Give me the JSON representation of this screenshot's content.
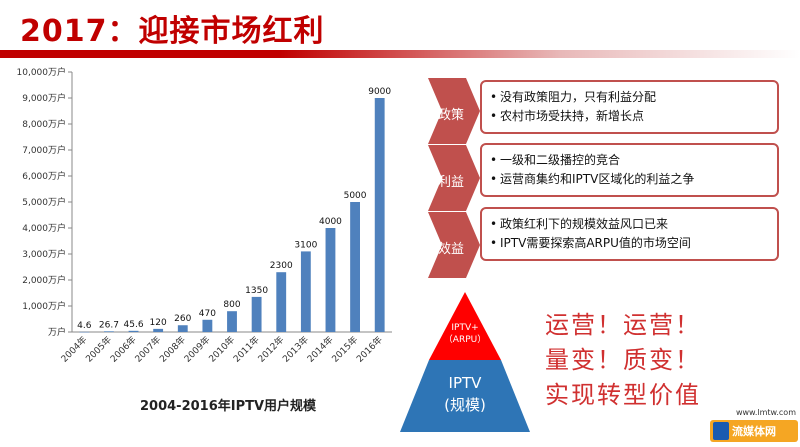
{
  "title": "2017：迎接市场红利",
  "chart_data": {
    "type": "bar",
    "title": "2004-2016年IPTV用户规模",
    "categories": [
      "2004年",
      "2005年",
      "2006年",
      "2007年",
      "2008年",
      "2009年",
      "2010年",
      "2011年",
      "2012年",
      "2013年",
      "2014年",
      "2015年",
      "2016年"
    ],
    "values": [
      4.6,
      26.7,
      45.6,
      120,
      260,
      470,
      800,
      1350,
      2300,
      3100,
      4000,
      5000,
      9000
    ],
    "data_labels": [
      "4.6",
      "26.7",
      "45.6",
      "120",
      "260",
      "470",
      "800",
      "1350",
      "2300",
      "3100",
      "4000",
      "5000",
      "9000"
    ],
    "ylim": [
      0,
      10000
    ],
    "y_ticks": [
      0,
      1000,
      2000,
      3000,
      4000,
      5000,
      6000,
      7000,
      8000,
      9000,
      10000
    ],
    "y_tick_labels": [
      "万户",
      "1,000万户",
      "2,000万户",
      "3,000万户",
      "4,000万户",
      "5,000万户",
      "6,000万户",
      "7,000万户",
      "8,000万户",
      "9,000万户",
      "10,000万户"
    ],
    "grid": false,
    "bar_color": "#4f81bd"
  },
  "factors": [
    {
      "label": "政策",
      "bullets": [
        "没有政策阻力，只有利益分配",
        "农村市场受扶持，新增长点"
      ]
    },
    {
      "label": "利益",
      "bullets": [
        "一级和二级播控的竞合",
        "运营商集约和IPTV区域化的利益之争"
      ]
    },
    {
      "label": "效益",
      "bullets": [
        "政策红利下的规模效益风口已来",
        "IPTV需要探索高ARPU值的市场空间"
      ]
    }
  ],
  "pyramid": {
    "top_line1": "IPTV+",
    "top_line2": "（ARPU）",
    "bottom_line1": "IPTV",
    "bottom_line2": "(规模)"
  },
  "slogan": [
    "运营！运营！",
    "量变！质变！",
    "实现转型价值"
  ],
  "logo": {
    "url": "www.lmtw.com",
    "name": "流媒体网"
  },
  "colors": {
    "title": "#c00000",
    "accent": "#c0504d",
    "pyramid_top": "#ff0000",
    "pyramid_bottom": "#2e75b6",
    "slogan": "#d03030"
  }
}
